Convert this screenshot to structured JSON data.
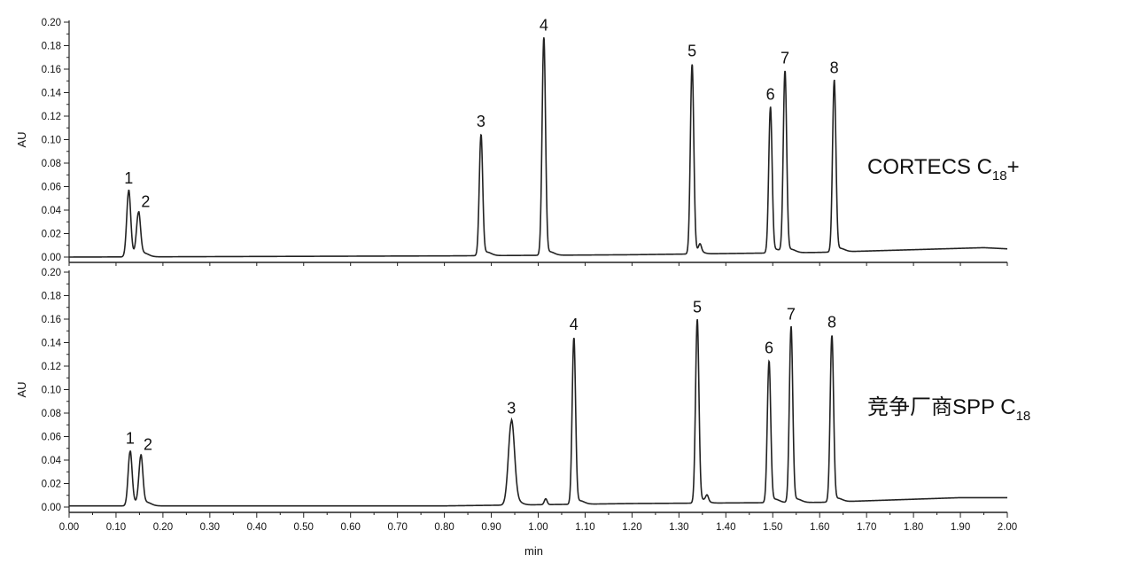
{
  "chart_data": {
    "type": "line",
    "xlabel": "min",
    "ylabel": "AU",
    "xlim": [
      0.0,
      2.0
    ],
    "ylim": [
      0.0,
      0.2
    ],
    "x_ticks": [
      "0.00",
      "0.10",
      "0.20",
      "0.30",
      "0.40",
      "0.50",
      "0.60",
      "0.70",
      "0.80",
      "0.90",
      "1.00",
      "1.10",
      "1.20",
      "1.30",
      "1.40",
      "1.50",
      "1.60",
      "1.70",
      "1.80",
      "1.90",
      "2.00"
    ],
    "y_ticks": [
      "0.00",
      "0.02",
      "0.04",
      "0.06",
      "0.08",
      "0.10",
      "0.12",
      "0.14",
      "0.16",
      "0.18",
      "0.20"
    ],
    "grid": false,
    "panels": [
      {
        "label_main": "CORTECS C",
        "label_sub": "18",
        "label_suffix": "+",
        "series_color": "#222222",
        "baseline": [
          [
            0.0,
            0.0
          ],
          [
            0.8,
            0.001
          ],
          [
            1.2,
            0.002
          ],
          [
            1.6,
            0.004
          ],
          [
            1.95,
            0.008
          ],
          [
            2.0,
            0.007
          ]
        ],
        "peaks": [
          {
            "label": "1",
            "x": 0.127,
            "y": 0.056
          },
          {
            "label": "2",
            "x": 0.148,
            "y": 0.036
          },
          {
            "label": "3",
            "x": 0.878,
            "y": 0.104
          },
          {
            "label": "4",
            "x": 1.012,
            "y": 0.186
          },
          {
            "label": "5",
            "x": 1.328,
            "y": 0.164
          },
          {
            "label": "6",
            "x": 1.495,
            "y": 0.127
          },
          {
            "label": "7",
            "x": 1.526,
            "y": 0.158
          },
          {
            "label": "8",
            "x": 1.631,
            "y": 0.15
          }
        ],
        "minor_peaks": [
          [
            1.345,
            0.006
          ],
          [
            1.007,
            0.004
          ]
        ]
      },
      {
        "label_main": "竞争厂商SPP C",
        "label_sub": "18",
        "label_suffix": "",
        "series_color": "#222222",
        "baseline": [
          [
            0.0,
            0.001
          ],
          [
            0.8,
            0.001
          ],
          [
            1.2,
            0.003
          ],
          [
            1.6,
            0.004
          ],
          [
            1.9,
            0.008
          ],
          [
            2.0,
            0.008
          ]
        ],
        "peaks": [
          {
            "label": "1",
            "x": 0.13,
            "y": 0.047
          },
          {
            "label": "2",
            "x": 0.153,
            "y": 0.042
          },
          {
            "label": "3",
            "x": 0.943,
            "y": 0.073
          },
          {
            "label": "4",
            "x": 1.076,
            "y": 0.144
          },
          {
            "label": "5",
            "x": 1.339,
            "y": 0.159
          },
          {
            "label": "6",
            "x": 1.492,
            "y": 0.124
          },
          {
            "label": "7",
            "x": 1.539,
            "y": 0.153
          },
          {
            "label": "8",
            "x": 1.626,
            "y": 0.146
          }
        ],
        "minor_peaks": [
          [
            1.016,
            0.005
          ],
          [
            1.36,
            0.005
          ]
        ]
      }
    ]
  }
}
